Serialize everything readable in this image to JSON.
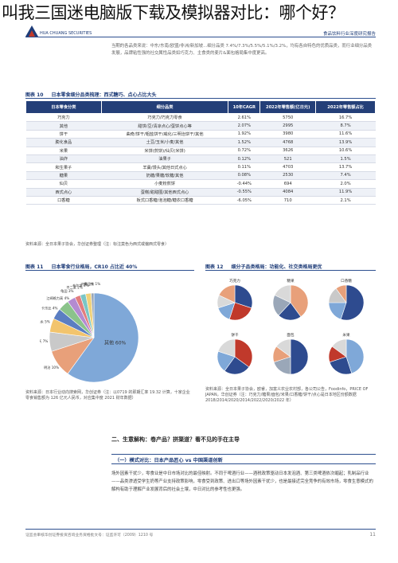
{
  "overlay_title": "叫我三国迷电脑版下载及模拟器对比：哪个好？",
  "header": {
    "logo_text": "HUA CHUANG SECURITIES",
    "report_type": "食品饮料行业深度研究报告"
  },
  "intro_text": "当期的各品类来说：中东/东南/欧盟/非洲/新加坡...细分品类 7.4%/7.3%/5.5%/5.1%/3.2%，均有各自特色的优质品类，而行业细分品类发展，品牌粘性强的社交属性品类如巧克力、主食类的麦片&面包格局集中度更高。",
  "fig10": {
    "no": "图表 10",
    "title": "日本零食细分品类梳理：西式糖巧、点心占比大头",
    "headers": [
      "日本零食分类",
      "细分品类",
      "10年CAGR",
      "2022年零售额(亿日元)",
      "2022年零售额占比"
    ],
    "rows": [
      [
        "巧克力",
        "巧克力/巧克力零食",
        "2.61%",
        "5750",
        "16.7%"
      ],
      [
        "其他",
        "甜饼/豆/清凉点心/蛋饼点心等",
        "2.07%",
        "2995",
        "8.7%"
      ],
      [
        "饼干",
        "曲奇/饼干/粗盐饼干/威化/三明治饼干/其他",
        "1.92%",
        "3980",
        "11.6%"
      ],
      [
        "膨化食品",
        "土豆/玉米/小麦/其他",
        "1.52%",
        "4768",
        "13.9%"
      ],
      [
        "米果",
        "米饼(煎饼)/仙贝(米饼)",
        "0.72%",
        "3626",
        "10.6%"
      ],
      [
        "油炸",
        "油果子",
        "0.12%",
        "521",
        "1.5%"
      ],
      [
        "和生果子",
        "羊羹/馒头/其他日式点心",
        "0.11%",
        "4703",
        "13.7%"
      ],
      [
        "糖果",
        "奶糖/果糖/软糖/其他",
        "0.08%",
        "2530",
        "7.4%"
      ],
      [
        "仙贝",
        "小麦粉煎饼",
        "-0.44%",
        "694",
        "2.0%"
      ],
      [
        "西式点心",
        "蛋糕/甜甜圈/其他西式点心",
        "-0.55%",
        "4084",
        "11.9%"
      ],
      [
        "口香糖",
        "板式口香糖/泡泡糖/糖衣口香糖",
        "-6.05%",
        "710",
        "2.1%"
      ]
    ],
    "source": "资料来源：全日本果子协会，华创证券整理（注：标注莫色为西式或偏西式零食）"
  },
  "fig11": {
    "no": "图表 11",
    "title": "日本零食行业格局，CR10 占比近 40%",
    "source": "资料来源：日本行业动向搜索网，华创证券（注：以0719 的即期汇率 19.32 计算，十家企业零食销售额为 126 亿元人民币，对应集中度 2021 财年数据）"
  },
  "fig12": {
    "no": "图表 12",
    "title": "细分子品类格局：功能化、社交类格局更优",
    "source": "资料来源：全日本果子协会，欧睿，加富义农业农村部，各公司公告，Foodinfo，PRICE OF JAPAN，华创证券（注：巧克力/糖果/面包/米果/口香糖/饼干/点心是日本地区份额数据 2018/2014/2020/2014/2022/2020/2022 年）"
  },
  "chart_data": [
    {
      "type": "pie",
      "title": "日本零食行业格局，CR10 占比近 40%",
      "categories": [
        "其他",
        "明治",
        "乐天",
        "森永",
        "卡乐比",
        "江崎格力高",
        "龟田",
        "不二家",
        "布尔本",
        "YBC",
        "春日井"
      ],
      "values": [
        60,
        10,
        7,
        5,
        4,
        4,
        3,
        2,
        2,
        2,
        1
      ]
    },
    {
      "type": "pie",
      "title": "巧克力",
      "values": [
        30,
        25,
        15,
        12,
        18
      ]
    },
    {
      "type": "pie",
      "title": "糖果",
      "values": [
        40,
        22,
        20,
        18
      ]
    },
    {
      "type": "pie",
      "title": "口香糖",
      "values": [
        55,
        20,
        15,
        10
      ]
    },
    {
      "type": "pie",
      "title": "饼干",
      "values": [
        35,
        25,
        20,
        20
      ]
    },
    {
      "type": "pie",
      "title": "面包",
      "values": [
        50,
        20,
        15,
        15
      ]
    },
    {
      "type": "pie",
      "title": "米果",
      "values": [
        45,
        25,
        15,
        15
      ]
    }
  ],
  "section": {
    "title": "二、生意解构：卷产品？拼渠道？看不见的手在主导",
    "subtitle": "（一）模式对比：日本产品匠心 vs 中国渠道创新",
    "body": "场外因素干扰少，零食业是中日市场对比的最佳映射。不同于啤酒行业——酒税政策驱动日本发泡酒、第三类啤酒依次崛起；乳制品行业——品类渗透受学生奶等产业支持政策影响，零食受到政策、进出口等场外因素干扰少，也是最接近完全竞争的有效市场，零食生意模式的解构有助于理解产业发展背后的社会土壤，中日对比的参考性也更强。"
  },
  "footer": {
    "left": "证监会审核华创证券投资咨询业务资格批文号：证监许可（2009）1210 号",
    "page": "11"
  },
  "colors": {
    "brand_blue": "#1e3c78",
    "pie_other": "#6d9bd2",
    "accent_red": "#c0392b"
  }
}
